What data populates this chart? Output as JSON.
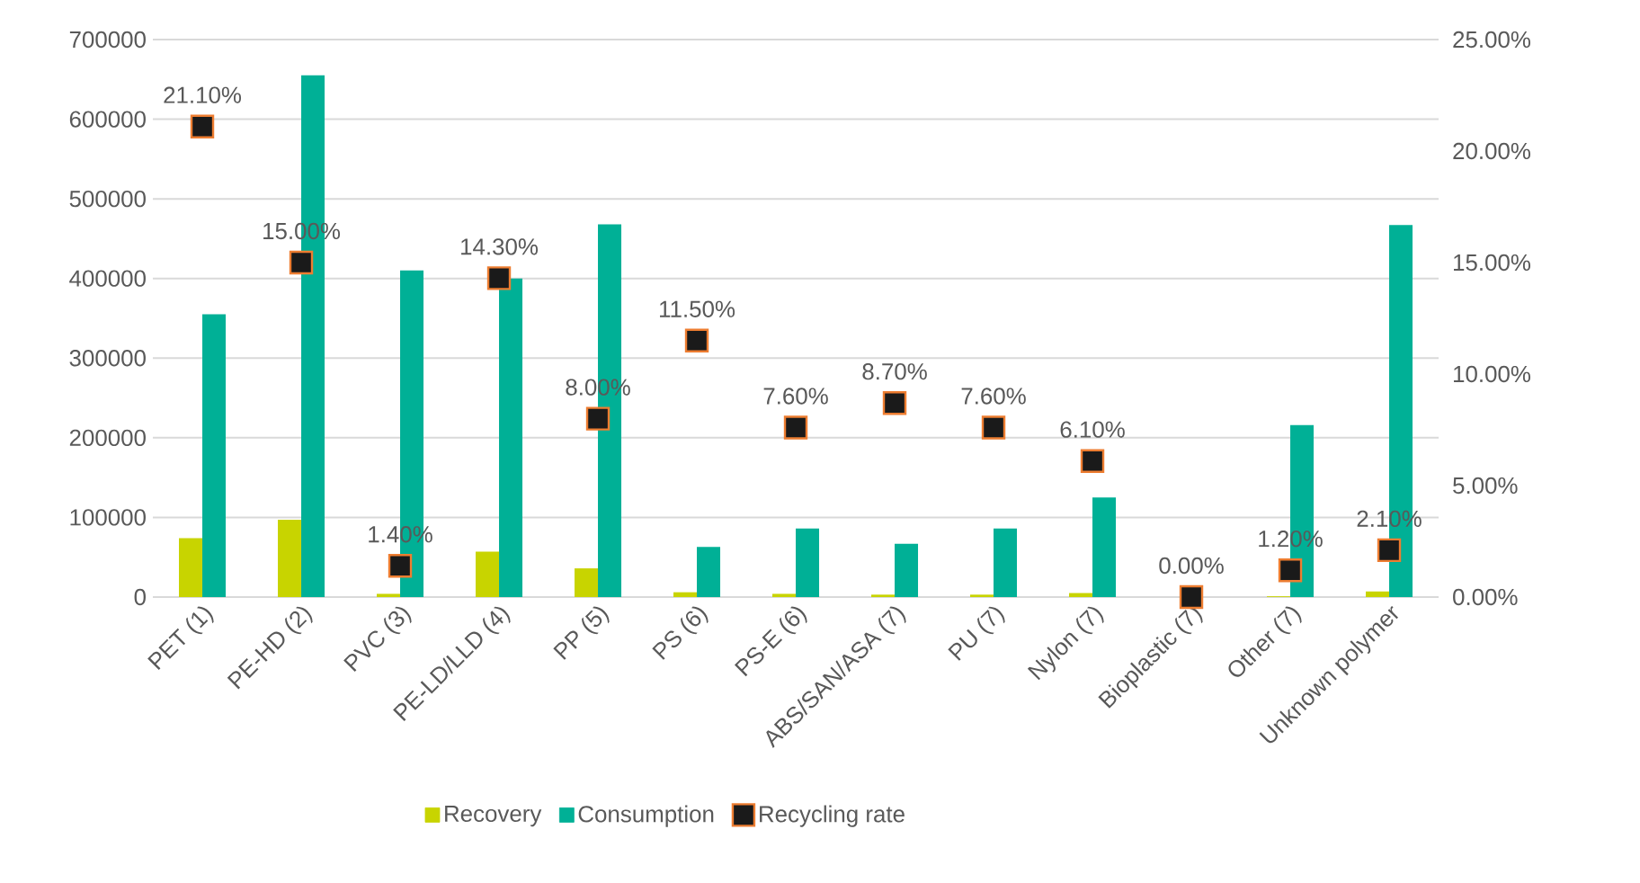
{
  "chart_data": {
    "type": "bar",
    "categories": [
      "PET (1)",
      "PE-HD (2)",
      "PVC (3)",
      "PE-LD/LLD (4)",
      "PP (5)",
      "PS (6)",
      "PS-E (6)",
      "ABS/SAN/ASA (7)",
      "PU (7)",
      "Nylon (7)",
      "Bioplastic (7)",
      "Other (7)",
      "Unknown polymer"
    ],
    "series": [
      {
        "name": "Recovery",
        "color": "#c8d400",
        "values": [
          74000,
          97000,
          4000,
          57000,
          36000,
          6000,
          4000,
          3000,
          3000,
          5000,
          0,
          1000,
          7000
        ]
      },
      {
        "name": "Consumption",
        "color": "#00b096",
        "values": [
          355000,
          655000,
          410000,
          400000,
          468000,
          63000,
          86000,
          67000,
          86000,
          125000,
          0,
          216000,
          467000
        ]
      },
      {
        "name": "Recycling rate",
        "type": "scatter",
        "axis": "y2",
        "marker": "square",
        "color": "#1a1a1a",
        "values": [
          21.1,
          15.0,
          1.4,
          14.3,
          8.0,
          11.5,
          7.6,
          8.7,
          7.6,
          6.1,
          0.0,
          1.2,
          2.1
        ],
        "value_labels": [
          "21.10%",
          "15.00%",
          "1.40%",
          "14.30%",
          "8.00%",
          "11.50%",
          "7.60%",
          "8.70%",
          "7.60%",
          "6.10%",
          "0.00%",
          "1.20%",
          "2.10%"
        ]
      }
    ],
    "ylim": [
      0,
      700000
    ],
    "yticks": [
      0,
      100000,
      200000,
      300000,
      400000,
      500000,
      600000,
      700000
    ],
    "y2lim": [
      0,
      25
    ],
    "y2ticks": [
      {
        "value": 0,
        "label": "0.00%"
      },
      {
        "value": 5,
        "label": "5.00%"
      },
      {
        "value": 10,
        "label": "10.00%"
      },
      {
        "value": 15,
        "label": "15.00%"
      },
      {
        "value": 20,
        "label": "20.00%"
      },
      {
        "value": 25,
        "label": "25.00%"
      }
    ],
    "grid": "y",
    "legend": "bottom"
  }
}
